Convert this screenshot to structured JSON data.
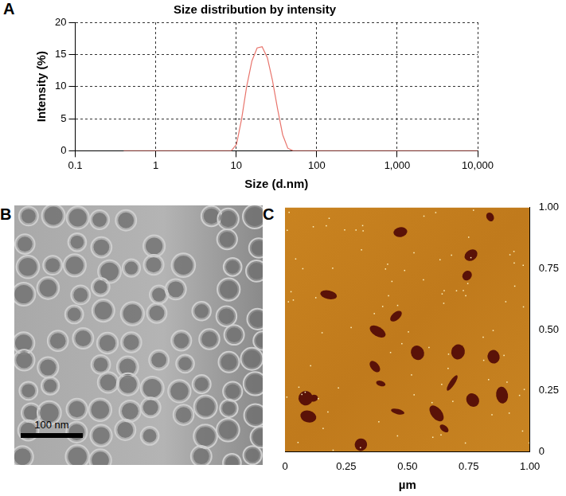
{
  "chart_data": [
    {
      "panel": "A",
      "type": "line",
      "title": "Size distribution by intensity",
      "x_label": "Size (d.nm)",
      "y_label": "Intensity (%)",
      "log": "x",
      "grid": true,
      "color": "#e8746c",
      "x": [
        0.4,
        1,
        2,
        5,
        8.7,
        10.1,
        11.7,
        13.5,
        15.7,
        18.2,
        21,
        24.4,
        28.2,
        32.7,
        37.8,
        43.8,
        50.7,
        100,
        1000,
        10000
      ],
      "values": [
        0,
        0,
        0,
        0,
        0,
        1,
        5,
        10,
        14,
        16,
        16.2,
        14.5,
        11,
        6.5,
        2.5,
        0.4,
        0,
        0,
        0,
        0
      ],
      "xlim": [
        0.1,
        10000
      ],
      "xticks": [
        0.1,
        1,
        10,
        100,
        {
          "value": 1000,
          "label": "1,000"
        },
        {
          "value": 10000,
          "label": "10,000"
        }
      ],
      "ylim": [
        0,
        20
      ],
      "yticks": [
        0,
        5,
        10,
        15,
        20
      ]
    },
    {
      "panel": "C",
      "type": "image",
      "x_label": "µm",
      "grid": false,
      "xlim": [
        0,
        1
      ],
      "xticks": [
        0,
        0.25,
        {
          "value": 0.5,
          "label": "0.50"
        },
        0.75,
        {
          "value": 1,
          "label": "1.00"
        }
      ],
      "ylim": [
        0,
        1
      ],
      "yticks": [
        0,
        0.25,
        {
          "value": 0.5,
          "label": "0.50"
        },
        0.75,
        {
          "value": 1,
          "label": "1.00"
        }
      ]
    }
  ],
  "images": [
    {
      "panel": "B",
      "scale_bar": "100 nm"
    }
  ]
}
